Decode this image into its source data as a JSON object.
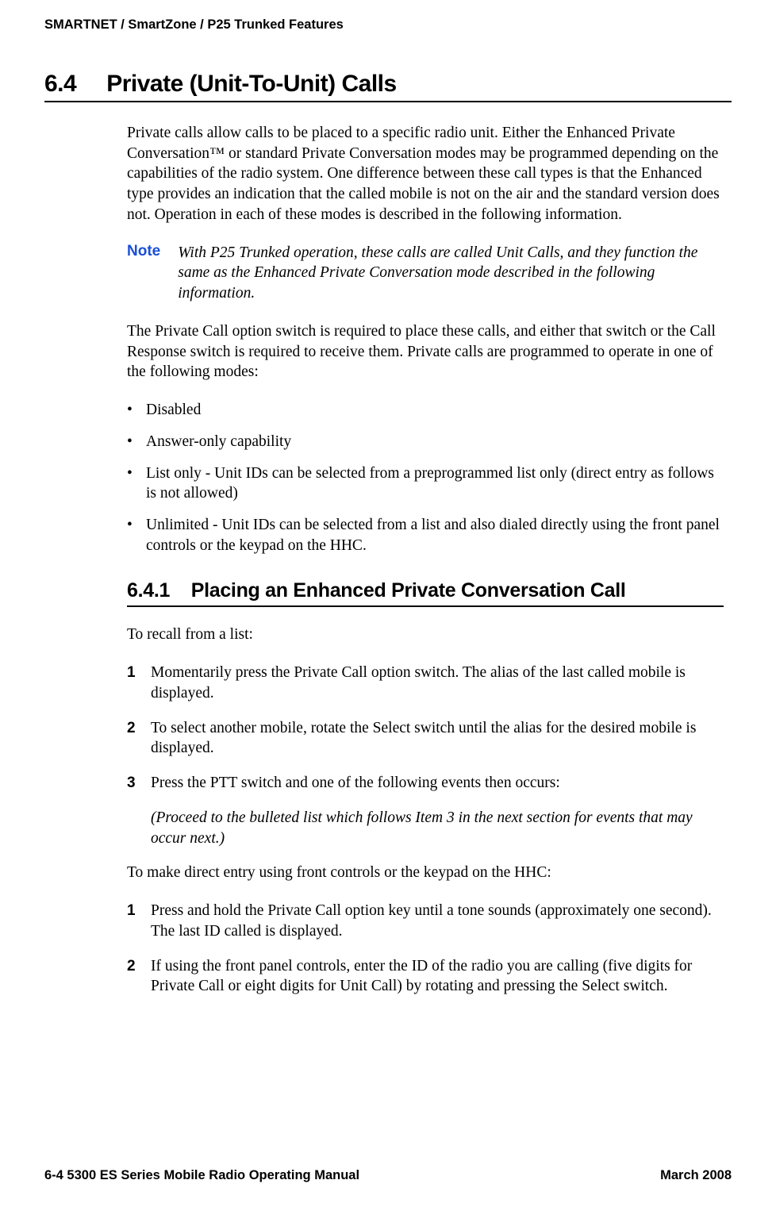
{
  "doc": {
    "running_head": "SMARTNET / SmartZone / P25 Trunked Features",
    "footer_left": "6-4    5300 ES Series Mobile Radio Operating Manual",
    "footer_right": "March 2008",
    "colors": {
      "note_label": "#1a4fd6",
      "text": "#000000",
      "background": "#ffffff"
    }
  },
  "section": {
    "number": "6.4",
    "title": "Private (Unit-To-Unit) Calls",
    "intro": "Private calls allow calls to be placed to a specific radio unit. Either the Enhanced Private Conversation™ or standard Private Conversation modes may be programmed depending on the capabilities of the radio system. One difference between these call types is that the Enhanced type provides an indication that the called mobile is not on the air and the standard version does not. Operation in each of these modes is described in the following information.",
    "note_label": "Note",
    "note_text": "With P25 Trunked operation, these calls are called Unit Calls, and they function the same as the Enhanced Private Conversation mode described in the following information.",
    "para2": "The Private Call option switch is required to place these calls, and either that switch or the Call Response switch is required to receive them. Private calls are programmed to operate in one of the following modes:",
    "modes": [
      "Disabled",
      "Answer-only capability",
      "List only - Unit IDs can be selected from a preprogrammed list only (direct entry as follows is not allowed)",
      "Unlimited - Unit IDs can be selected from a list and also dialed directly using the front panel controls or the keypad on the HHC."
    ]
  },
  "sub": {
    "number": "6.4.1",
    "title": "Placing an Enhanced Private Conversation Call",
    "lead1": "To recall from a list:",
    "steps1": [
      "Momentarily press the Private Call option switch. The alias of the last called mobile is displayed.",
      "To select another mobile, rotate the Select switch until the alias for the desired mobile is displayed.",
      "Press the PTT switch and one of the following events then occurs:"
    ],
    "after3": "(Proceed to the bulleted list which follows Item 3 in the next section for events that may occur next.)",
    "lead2": "To make direct entry using front controls or the keypad on the HHC:",
    "steps2": [
      "Press and hold the Private Call option key until a tone sounds (approximately one second). The last ID called is displayed.",
      "If using the front panel controls, enter the ID of the radio you are calling (five digits for Private Call or eight digits for Unit Call) by rotating and pressing the Select switch."
    ]
  }
}
